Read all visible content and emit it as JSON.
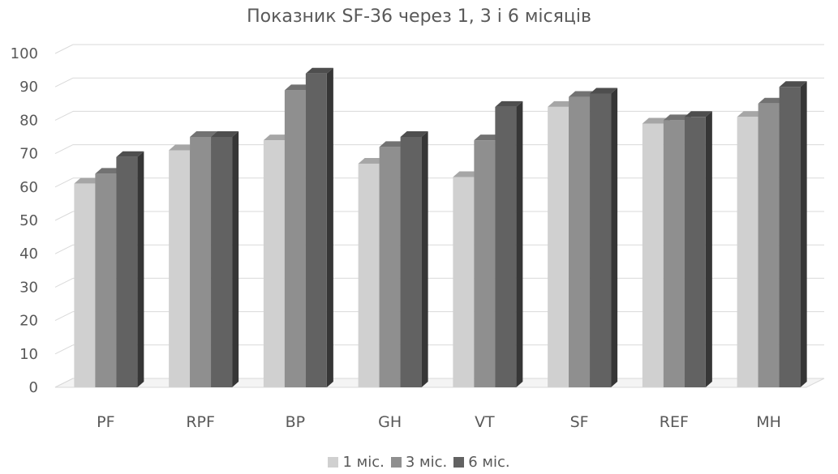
{
  "chart_data": {
    "type": "bar",
    "title": "Показник SF-36 через 1, 3 і 6 місяців",
    "categories": [
      "PF",
      "RPF",
      "BP",
      "GH",
      "VT",
      "SF",
      "REF",
      "MH"
    ],
    "series": [
      {
        "name": "1 міс.",
        "color": "#d0d0d0",
        "values": [
          61,
          71,
          74,
          67,
          63,
          84,
          79,
          81
        ]
      },
      {
        "name": "3 міс.",
        "color": "#8f8f8f",
        "values": [
          64,
          75,
          89,
          72,
          74,
          87,
          80,
          85
        ]
      },
      {
        "name": "6 міс.",
        "color": "#626262",
        "values": [
          69,
          75,
          94,
          75,
          84,
          88,
          81,
          90
        ]
      }
    ],
    "ylim": [
      0,
      100
    ],
    "yticks": [
      0,
      10,
      20,
      30,
      40,
      50,
      60,
      70,
      80,
      90,
      100
    ],
    "grid": true,
    "legend_position": "bottom",
    "style": "3d-clustered-column"
  }
}
